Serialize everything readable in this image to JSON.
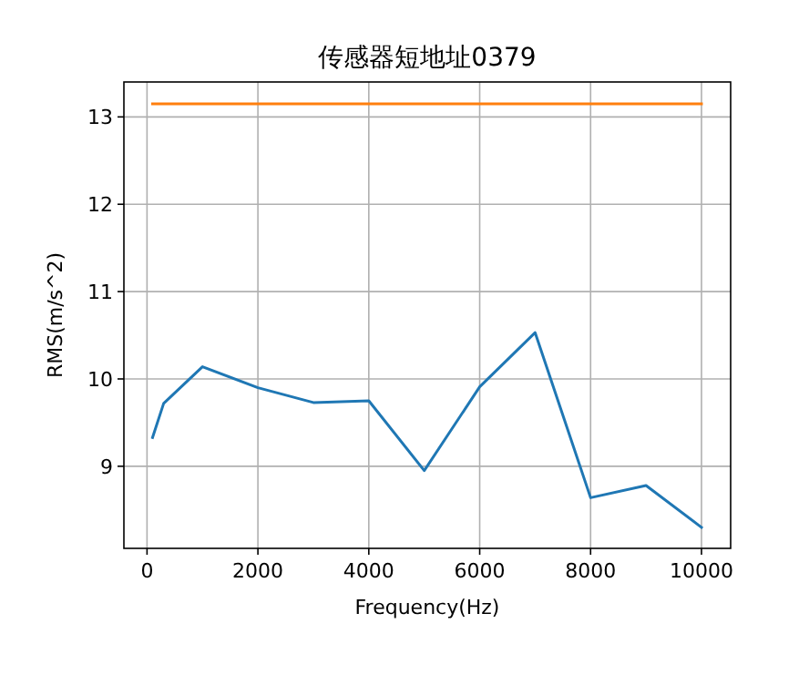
{
  "chart_data": {
    "type": "line",
    "title": "传感器短地址0379",
    "xlabel": "Frequency(Hz)",
    "ylabel": "RMS(m/s^2)",
    "xlim": [
      -417,
      10526
    ],
    "ylim": [
      8.06,
      13.4
    ],
    "xticks": [
      0,
      2000,
      4000,
      6000,
      8000,
      10000
    ],
    "yticks": [
      9,
      10,
      11,
      12,
      13
    ],
    "grid": true,
    "series": [
      {
        "color": "#1f77b4",
        "x": [
          100,
          300,
          1000,
          2000,
          3000,
          4000,
          5000,
          6000,
          7000,
          8000,
          9000,
          10000
        ],
        "values": [
          9.33,
          9.72,
          10.14,
          9.9,
          9.73,
          9.75,
          8.95,
          9.91,
          10.53,
          8.64,
          8.78,
          8.3
        ]
      },
      {
        "color": "#ff7f0e",
        "x": [
          100,
          10000
        ],
        "values": [
          13.15,
          13.15
        ]
      }
    ]
  }
}
